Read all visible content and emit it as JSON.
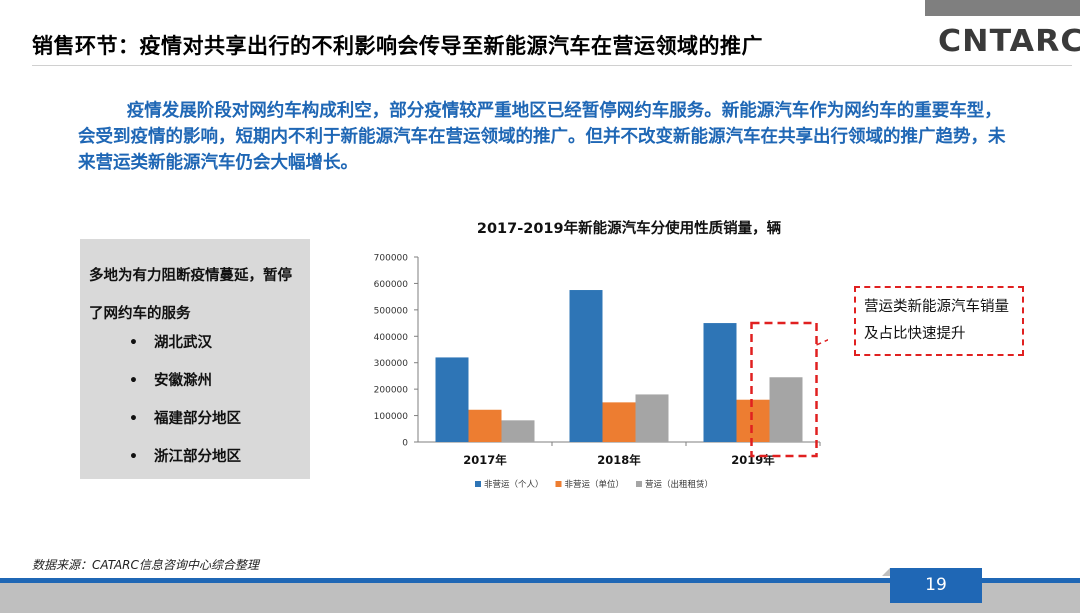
{
  "slide": {
    "title": "销售环节：疫情对共享出行的不利影响会传导至新能源汽车在营运领域的推广",
    "logo_text": "CNTARC",
    "intro": "        疫情发展阶段对网约车构成利空，部分疫情较严重地区已经暂停网约车服务。新能源汽车作为网约车的重要车型，会受到疫情的影响，短期内不利于新能源汽车在营运领域的推广。但并不改变新能源汽车在共享出行领域的推广趋势，未来营运类新能源汽车仍会大幅增长。",
    "sidebox": {
      "heading": "多地为有力阻断疫情蔓延，暂停了网约车的服务",
      "bullet_glyph": "•",
      "items": [
        "湖北武汉",
        "安徽滁州",
        "福建部分地区",
        "浙江部分地区"
      ]
    },
    "callout": "营运类新能源汽车销量及占比快速提升",
    "source": "数据来源：CATARC信息咨询中心综合整理",
    "page_number": "19",
    "colors": {
      "accent": "#1f67b5",
      "series": [
        "#2e75b6",
        "#ed7d31",
        "#a5a5a5"
      ],
      "callout_border": "#e02020"
    }
  },
  "chart_data": {
    "type": "bar",
    "title": "2017-2019年新能源汽车分使用性质销量，辆",
    "categories": [
      "2017年",
      "2018年",
      "2019年"
    ],
    "series": [
      {
        "name": "非营运（个人）",
        "values": [
          320000,
          575000,
          450000
        ]
      },
      {
        "name": "非营运（单位）",
        "values": [
          122000,
          150000,
          160000
        ]
      },
      {
        "name": "营运（出租租赁）",
        "values": [
          82000,
          180000,
          245000
        ]
      }
    ],
    "yticks": [
      "0",
      "100000",
      "200000",
      "300000",
      "400000",
      "500000",
      "600000",
      "700000"
    ],
    "ylim": [
      0,
      700000
    ],
    "legend_position": "bottom",
    "grid": false
  }
}
